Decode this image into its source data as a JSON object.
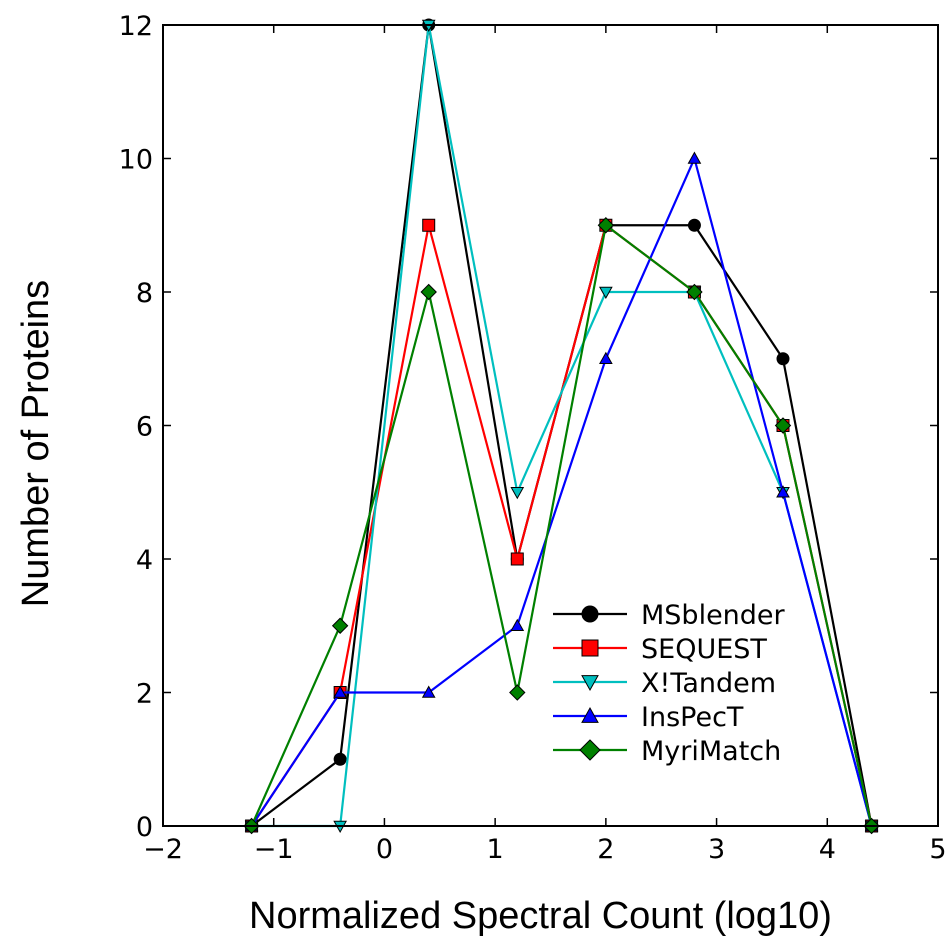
{
  "chart_data": {
    "type": "line",
    "xlabel": "Normalized Spectral Count (log10)",
    "ylabel": "Number of Proteins",
    "xlim": [
      -2,
      5
    ],
    "ylim": [
      0,
      12
    ],
    "xticks": [
      -2,
      -1,
      0,
      1,
      2,
      3,
      4,
      5
    ],
    "xtick_labels": [
      "−2",
      "−1",
      "0",
      "1",
      "2",
      "3",
      "4",
      "5"
    ],
    "yticks": [
      0,
      2,
      4,
      6,
      8,
      10,
      12
    ],
    "ytick_labels": [
      "0",
      "2",
      "4",
      "6",
      "8",
      "10",
      "12"
    ],
    "grid": false,
    "legend_position": "lower-right",
    "x": [
      -1.2,
      -0.4,
      0.4,
      1.2,
      2.0,
      2.8,
      3.6,
      4.4
    ],
    "series": [
      {
        "name": "MSblender",
        "color": "#000000",
        "marker": "circle",
        "values": [
          0,
          1,
          12,
          4,
          9,
          9,
          7,
          0
        ]
      },
      {
        "name": "SEQUEST",
        "color": "#ff0000",
        "marker": "square",
        "values": [
          0,
          2,
          9,
          4,
          9,
          8,
          6,
          0
        ]
      },
      {
        "name": "X!Tandem",
        "color": "#00bfbf",
        "marker": "triangle-down",
        "values": [
          0,
          0,
          12,
          5,
          8,
          8,
          5,
          0
        ]
      },
      {
        "name": "InsPecT",
        "color": "#0000ff",
        "marker": "triangle-up",
        "values": [
          0,
          2,
          2,
          3,
          7,
          10,
          5,
          0
        ]
      },
      {
        "name": "MyriMatch",
        "color": "#008000",
        "marker": "diamond",
        "values": [
          0,
          3,
          8,
          2,
          9,
          8,
          6,
          0
        ]
      }
    ]
  }
}
